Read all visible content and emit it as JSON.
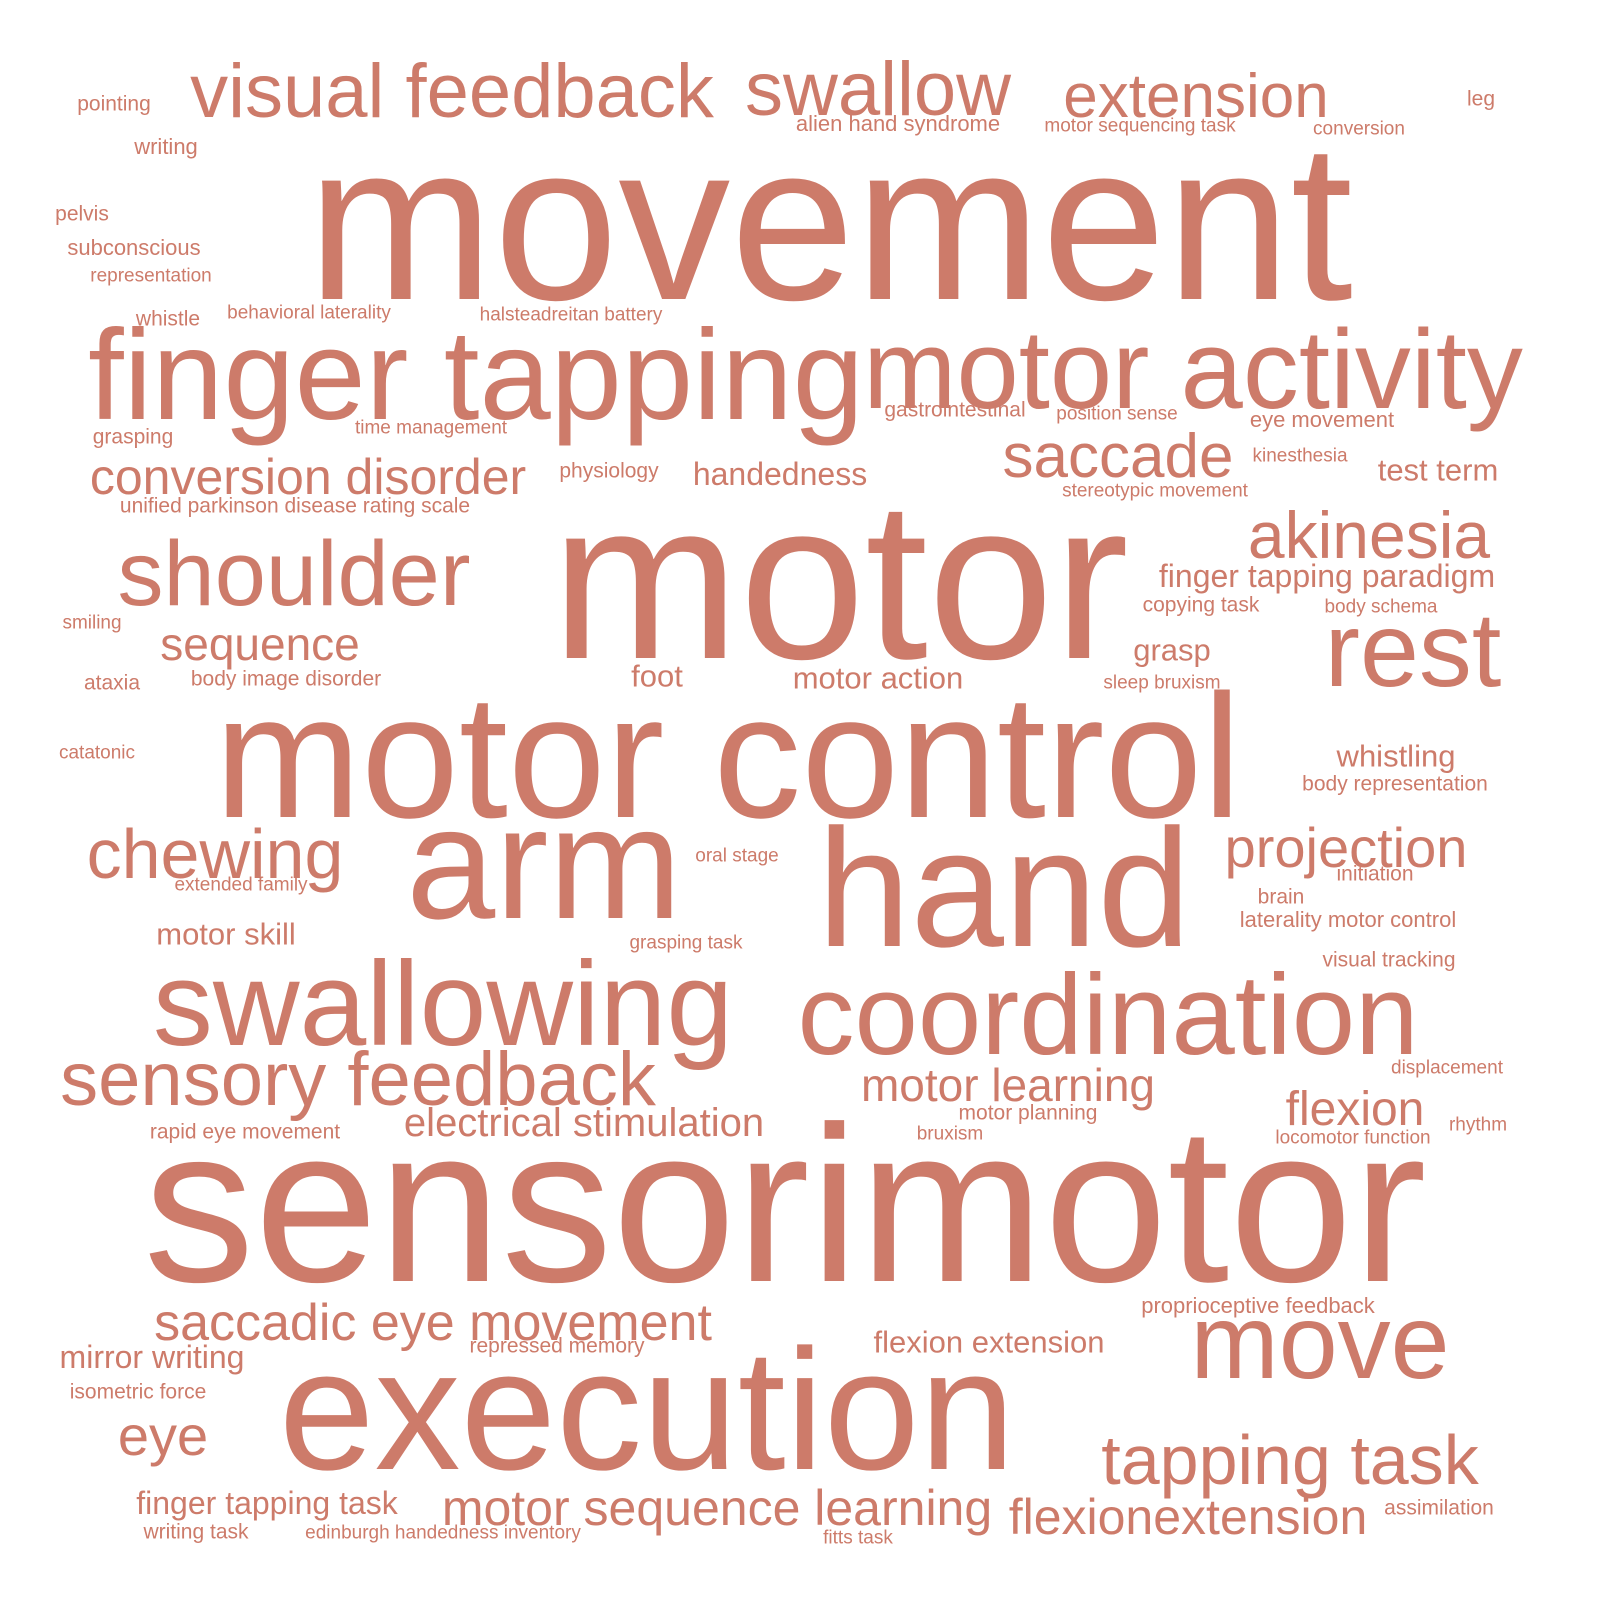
{
  "word_color": "#cd7b6a",
  "background": "#ffffff",
  "words": [
    {
      "text": "movement",
      "weight": 100
    },
    {
      "text": "motor",
      "weight": 100
    },
    {
      "text": "sensorimotor",
      "weight": 100
    },
    {
      "text": "motor control",
      "weight": 84
    },
    {
      "text": "execution",
      "weight": 82
    },
    {
      "text": "hand",
      "weight": 80
    },
    {
      "text": "arm",
      "weight": 78
    },
    {
      "text": "finger tapping",
      "weight": 62
    },
    {
      "text": "motor activity",
      "weight": 56
    },
    {
      "text": "swallowing",
      "weight": 58
    },
    {
      "text": "coordination",
      "weight": 56
    },
    {
      "text": "rest",
      "weight": 52
    },
    {
      "text": "move",
      "weight": 52
    },
    {
      "text": "visual feedback",
      "weight": 40
    },
    {
      "text": "swallow",
      "weight": 40
    },
    {
      "text": "shoulder",
      "weight": 46
    },
    {
      "text": "sensory feedback",
      "weight": 40
    },
    {
      "text": "extension",
      "weight": 34
    },
    {
      "text": "saccade",
      "weight": 34
    },
    {
      "text": "akinesia",
      "weight": 34
    },
    {
      "text": "chewing",
      "weight": 36
    },
    {
      "text": "tapping task",
      "weight": 36
    },
    {
      "text": "saccadic eye movement",
      "weight": 30
    },
    {
      "text": "projection",
      "weight": 30
    },
    {
      "text": "eye",
      "weight": 30
    },
    {
      "text": "flexionextension",
      "weight": 28
    },
    {
      "text": "motor sequence learning",
      "weight": 28
    },
    {
      "text": "conversion disorder",
      "weight": 27
    },
    {
      "text": "motor learning",
      "weight": 25
    },
    {
      "text": "flexion",
      "weight": 26
    },
    {
      "text": "sequence",
      "weight": 25
    },
    {
      "text": "electrical stimulation",
      "weight": 23
    },
    {
      "text": "handedness",
      "weight": 19
    },
    {
      "text": "finger tapping paradigm",
      "weight": 19
    },
    {
      "text": "motor action",
      "weight": 18
    },
    {
      "text": "test term",
      "weight": 18
    },
    {
      "text": "mirror writing",
      "weight": 19
    },
    {
      "text": "finger tapping task",
      "weight": 19
    },
    {
      "text": "motor skill",
      "weight": 18
    },
    {
      "text": "flexion extension",
      "weight": 18
    },
    {
      "text": "foot",
      "weight": 18
    },
    {
      "text": "grasp",
      "weight": 18
    },
    {
      "text": "whistling",
      "weight": 18
    },
    {
      "text": "pointing",
      "weight": 11
    },
    {
      "text": "leg",
      "weight": 11
    },
    {
      "text": "alien hand syndrome",
      "weight": 12
    },
    {
      "text": "motor sequencing task",
      "weight": 10
    },
    {
      "text": "conversion",
      "weight": 10
    },
    {
      "text": "writing",
      "weight": 12
    },
    {
      "text": "pelvis",
      "weight": 11
    },
    {
      "text": "subconscious",
      "weight": 12
    },
    {
      "text": "representation",
      "weight": 10
    },
    {
      "text": "whistle",
      "weight": 11
    },
    {
      "text": "behavioral laterality",
      "weight": 10
    },
    {
      "text": "halsteadreitan battery",
      "weight": 10
    },
    {
      "text": "grasping",
      "weight": 11
    },
    {
      "text": "time management",
      "weight": 10
    },
    {
      "text": "gastrointestinal",
      "weight": 11
    },
    {
      "text": "position sense",
      "weight": 10
    },
    {
      "text": "eye movement",
      "weight": 12
    },
    {
      "text": "kinesthesia",
      "weight": 10
    },
    {
      "text": "physiology",
      "weight": 11
    },
    {
      "text": "unified parkinson disease rating scale",
      "weight": 11
    },
    {
      "text": "stereotypic movement",
      "weight": 10
    },
    {
      "text": "copying task",
      "weight": 11
    },
    {
      "text": "body schema",
      "weight": 10
    },
    {
      "text": "smiling",
      "weight": 10
    },
    {
      "text": "ataxia",
      "weight": 11
    },
    {
      "text": "body image disorder",
      "weight": 11
    },
    {
      "text": "sleep bruxism",
      "weight": 10
    },
    {
      "text": "catatonic",
      "weight": 10
    },
    {
      "text": "body representation",
      "weight": 11
    },
    {
      "text": "oral stage",
      "weight": 10
    },
    {
      "text": "initiation",
      "weight": 11
    },
    {
      "text": "extended family",
      "weight": 10
    },
    {
      "text": "brain",
      "weight": 11
    },
    {
      "text": "laterality motor control",
      "weight": 12
    },
    {
      "text": "grasping task",
      "weight": 10
    },
    {
      "text": "visual tracking",
      "weight": 11
    },
    {
      "text": "displacement",
      "weight": 10
    },
    {
      "text": "rapid eye movement",
      "weight": 11
    },
    {
      "text": "motor planning",
      "weight": 11
    },
    {
      "text": "rhythm",
      "weight": 10
    },
    {
      "text": "bruxism",
      "weight": 10
    },
    {
      "text": "locomotor function",
      "weight": 10
    },
    {
      "text": "proprioceptive feedback",
      "weight": 12
    },
    {
      "text": "repressed memory",
      "weight": 11
    },
    {
      "text": "isometric force",
      "weight": 11
    },
    {
      "text": "assimilation",
      "weight": 11
    },
    {
      "text": "writing task",
      "weight": 11
    },
    {
      "text": "edinburgh handedness inventory",
      "weight": 10
    },
    {
      "text": "fitts task",
      "weight": 10
    }
  ]
}
